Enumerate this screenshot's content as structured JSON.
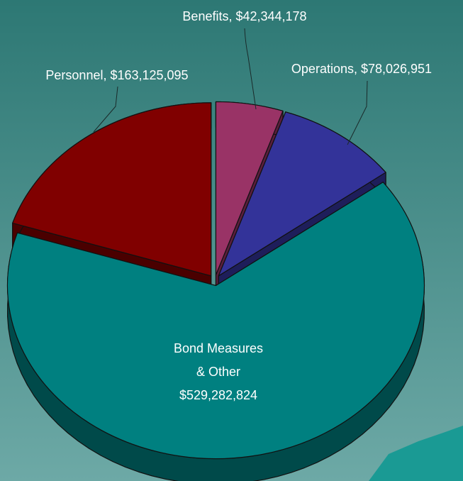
{
  "chart_data": {
    "type": "pie3d",
    "categories": [
      "Personnel",
      "Benefits",
      "Operations",
      "Bond Measures & Other"
    ],
    "values": [
      163125095,
      42344178,
      78026951,
      529282824
    ],
    "labels": [
      [
        "Personnel, $163,125,095"
      ],
      [
        "Benefits, $42,344,178"
      ],
      [
        "Operations, $78,026,951"
      ],
      [
        "Bond Measures",
        "& Other",
        "$529,282,824"
      ]
    ],
    "colors": [
      "#800000",
      "#993366",
      "#333399",
      "#008080"
    ],
    "side_colors": [
      "#4a0000",
      "#5a1e3c",
      "#1e1e5a",
      "#004a4a"
    ]
  }
}
